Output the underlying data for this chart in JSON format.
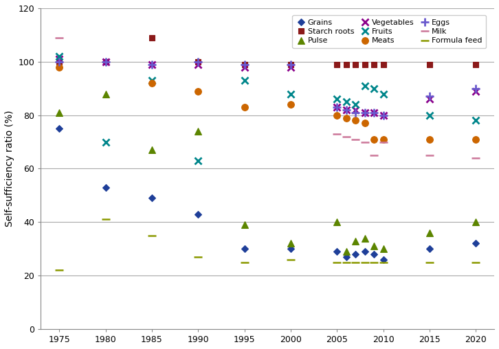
{
  "ylabel": "Self-sufficiency ratio (%)",
  "xlim": [
    1973,
    2022
  ],
  "ylim": [
    0,
    120
  ],
  "yticks": [
    0,
    20,
    40,
    60,
    80,
    100,
    120
  ],
  "xticks": [
    1975,
    1980,
    1985,
    1990,
    1995,
    2000,
    2005,
    2010,
    2015,
    2020
  ],
  "legend_order": [
    "Grains",
    "Starch roots",
    "Pulse",
    "Vegetables",
    "Fruits",
    "Meats",
    "Eggs",
    "Milk",
    "Formula feed"
  ],
  "series": {
    "Grains": {
      "color": "#1F3F99",
      "marker": "D",
      "markersize": 5,
      "data": {
        "1975": 75,
        "1980": 53,
        "1985": 49,
        "1990": 43,
        "1995": 30,
        "2000": 30,
        "2005": 29,
        "2006": 27,
        "2007": 28,
        "2008": 29,
        "2009": 28,
        "2010": 26,
        "2015": 30,
        "2020": 32
      }
    },
    "Starch roots": {
      "color": "#8B1A1A",
      "marker": "s",
      "markersize": 6,
      "data": {
        "1975": 100,
        "1980": 100,
        "1985": 109,
        "1990": 100,
        "1995": 99,
        "2000": 99,
        "2005": 99,
        "2006": 99,
        "2007": 99,
        "2008": 99,
        "2009": 99,
        "2010": 99,
        "2015": 99,
        "2020": 99
      }
    },
    "Pulse": {
      "color": "#5C8500",
      "marker": "^",
      "markersize": 7,
      "data": {
        "1975": 81,
        "1980": 88,
        "1985": 67,
        "1990": 74,
        "1995": 39,
        "2000": 32,
        "2005": 40,
        "2006": 29,
        "2007": 33,
        "2008": 34,
        "2009": 31,
        "2010": 30,
        "2015": 36,
        "2020": 40
      }
    },
    "Vegetables": {
      "color": "#8B008B",
      "marker": "x",
      "markersize": 7,
      "data": {
        "1975": 101,
        "1980": 100,
        "1985": 99,
        "1990": 99,
        "1995": 98,
        "2000": 98,
        "2005": 83,
        "2006": 82,
        "2007": 82,
        "2008": 81,
        "2009": 81,
        "2010": 80,
        "2015": 86,
        "2020": 89
      }
    },
    "Fruits": {
      "color": "#00868B",
      "marker": "x",
      "markersize": 7,
      "data": {
        "1975": 102,
        "1980": 70,
        "1985": 93,
        "1990": 63,
        "1995": 93,
        "2000": 88,
        "2005": 86,
        "2006": 85,
        "2007": 84,
        "2008": 91,
        "2009": 90,
        "2010": 88,
        "2015": 80,
        "2020": 78
      }
    },
    "Meats": {
      "color": "#CC6600",
      "marker": "o",
      "markersize": 7,
      "data": {
        "1975": 98,
        "1985": 92,
        "1990": 89,
        "1995": 83,
        "2000": 84,
        "2005": 80,
        "2006": 79,
        "2007": 78,
        "2008": 77,
        "2009": 71,
        "2010": 71,
        "2015": 71,
        "2020": 71
      }
    },
    "Eggs": {
      "color": "#6A5ACD",
      "marker": "+",
      "markersize": 8,
      "data": {
        "1975": 100,
        "1980": 100,
        "1985": 99,
        "1990": 100,
        "1995": 99,
        "2000": 99,
        "2005": 83,
        "2006": 82,
        "2007": 81,
        "2008": 81,
        "2009": 81,
        "2010": 80,
        "2015": 87,
        "2020": 90
      }
    },
    "Milk": {
      "color": "#CC7799",
      "marker": "D",
      "markersize": 3,
      "linestyle": "--",
      "data": {
        "1975": 109,
        "2005": 73,
        "2006": 72,
        "2007": 71,
        "2008": 70,
        "2009": 65,
        "2010": 70,
        "2015": 65,
        "2020": 64
      }
    },
    "Formula feed": {
      "color": "#8B9900",
      "marker": "D",
      "markersize": 3,
      "linestyle": "--",
      "data": {
        "1975": 22,
        "1980": 41,
        "1985": 35,
        "1990": 27,
        "1995": 25,
        "2000": 26,
        "2005": 25,
        "2006": 25,
        "2007": 25,
        "2008": 25,
        "2009": 25,
        "2010": 25,
        "2015": 25,
        "2020": 25
      }
    }
  },
  "background_color": "#FFFFFF",
  "grid_color": "#AAAAAA"
}
